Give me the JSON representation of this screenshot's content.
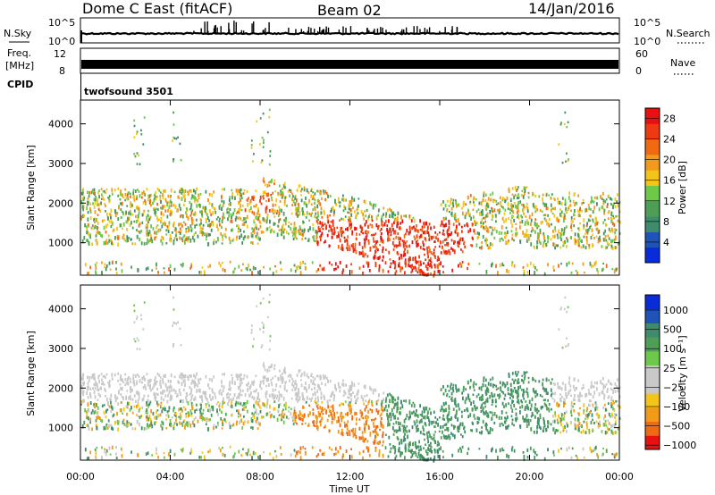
{
  "header": {
    "station": "Dome C East (fitACF)",
    "beam": "Beam 02",
    "date": "14/Jan/2016"
  },
  "nsky_panel": {
    "left_label": "N.Sky",
    "right_label": "N.Search",
    "left_ticks": [
      "10^5",
      "10^0"
    ],
    "right_ticks": [
      "10^5",
      "10^0"
    ]
  },
  "freq_panel": {
    "left_label_1": "Freq.",
    "left_label_2": "[MHz]",
    "right_label": "Nave",
    "left_ticks": [
      "12",
      "8"
    ],
    "right_ticks": [
      "60",
      "0"
    ]
  },
  "cpid": {
    "label": "CPID",
    "value": "twofsound 3501"
  },
  "colors": {
    "power_scale": [
      "#0a2bd9",
      "#1f53b8",
      "#3f8c6d",
      "#4e9e57",
      "#6cc94a",
      "#f5c419",
      "#f29a1a",
      "#f06a14",
      "#ee3a12",
      "#e81010"
    ],
    "velocity_scale": [
      "#e81010",
      "#f06a14",
      "#f29a1a",
      "#f5c419",
      "#c9c9c9",
      "#c9c9c9",
      "#6cc94a",
      "#4e9e57",
      "#3f8c6d",
      "#1f53b8",
      "#0a2bd9"
    ]
  },
  "chart_data": [
    {
      "type": "heatmap",
      "panel": "power",
      "ylabel": "Slant Range [km]",
      "yticks": [
        "1000",
        "2000",
        "3000",
        "4000"
      ],
      "ylim": [
        180,
        4600
      ],
      "xticks": [
        "00:00",
        "04:00",
        "08:00",
        "12:00",
        "16:00",
        "20:00",
        "00:00"
      ],
      "colorbar_label": "Power [dB]",
      "colorbar_ticks": [
        "4",
        "8",
        "12",
        "16",
        "20",
        "24",
        "28"
      ],
      "colorbar_range": [
        0,
        30
      ]
    },
    {
      "type": "heatmap",
      "panel": "velocity",
      "ylabel": "Slant Range [km]",
      "yticks": [
        "1000",
        "2000",
        "3000",
        "4000"
      ],
      "ylim": [
        180,
        4600
      ],
      "xticks": [
        "00:00",
        "04:00",
        "08:00",
        "12:00",
        "16:00",
        "20:00",
        "00:00"
      ],
      "xlabel": "Time UT",
      "colorbar_label": "Velocity [m s⁻¹]",
      "colorbar_ticks": [
        "1000",
        "500",
        "100",
        "25",
        "−25",
        "−100",
        "−500",
        "−1000"
      ]
    }
  ]
}
